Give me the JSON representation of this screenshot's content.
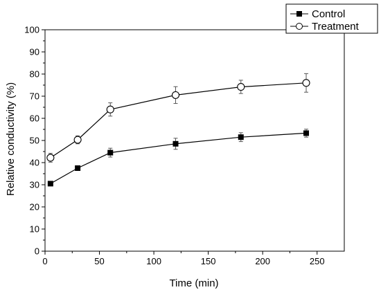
{
  "chart_data": {
    "type": "line",
    "xlabel": "Time (min)",
    "ylabel": "Relative conductivity (%)",
    "xlim": [
      0,
      275
    ],
    "ylim": [
      0,
      100
    ],
    "xticks": [
      0,
      50,
      100,
      150,
      200,
      250
    ],
    "yticks": [
      0,
      10,
      20,
      30,
      40,
      50,
      60,
      70,
      80,
      90,
      100
    ],
    "x": [
      5,
      30,
      60,
      120,
      180,
      240
    ],
    "legend_position": "top-right",
    "grid": false,
    "series": [
      {
        "name": "Control",
        "marker": "filled-square",
        "values": [
          30.5,
          37.5,
          44.5,
          48.5,
          51.5,
          53.3
        ],
        "errors": [
          0.8,
          1.0,
          2.0,
          2.5,
          2.0,
          1.8
        ]
      },
      {
        "name": "Treatment",
        "marker": "open-circle",
        "values": [
          42.2,
          50.3,
          64.0,
          70.5,
          74.2,
          76.0
        ],
        "errors": [
          2.0,
          1.8,
          3.0,
          3.8,
          3.0,
          4.2
        ]
      }
    ]
  }
}
